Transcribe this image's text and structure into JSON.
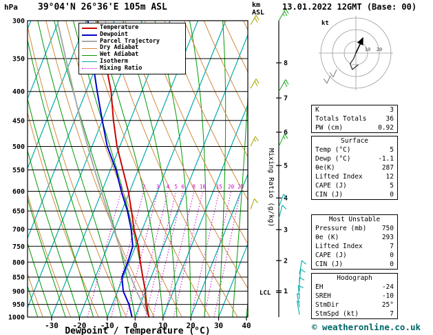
{
  "header": {
    "pressure_unit": "hPa",
    "station": "39°04'N 26°36'E 105m ASL",
    "datetime": "13.01.2022 12GMT (Base: 00)",
    "km_label": "km",
    "asl_label": "ASL"
  },
  "axes": {
    "bottom_label": "Dewpoint / Temperature (°C)",
    "right_label": "Mixing Ratio (g/kg)",
    "lcl_label": "LCL"
  },
  "legend": {
    "items": [
      {
        "label": "Temperature",
        "color": "#CC0000",
        "width": 2,
        "dash": ""
      },
      {
        "label": "Dewpoint",
        "color": "#0000CC",
        "width": 2,
        "dash": ""
      },
      {
        "label": "Parcel Trajectory",
        "color": "#AAAAAA",
        "width": 2,
        "dash": ""
      },
      {
        "label": "Dry Adiabat",
        "color": "#D08A3E",
        "width": 1.3,
        "dash": ""
      },
      {
        "label": "Wet Adiabat",
        "color": "#009900",
        "width": 1.3,
        "dash": ""
      },
      {
        "label": "Isotherm",
        "color": "#00AAAA",
        "width": 1.3,
        "dash": ""
      },
      {
        "label": "Mixing Ratio",
        "color": "#CC00CC",
        "width": 1.3,
        "dash": "dot"
      }
    ]
  },
  "side_panel": {
    "indices": {
      "rows": [
        [
          "K",
          "3"
        ],
        [
          "Totals Totals",
          "36"
        ],
        [
          "PW (cm)",
          "0.92"
        ]
      ]
    },
    "surface": {
      "title": "Surface",
      "rows": [
        [
          "Temp (°C)",
          "5"
        ],
        [
          "Dewp (°C)",
          "-1.1"
        ],
        [
          "θe(K)",
          "287"
        ],
        [
          "Lifted Index",
          "12"
        ],
        [
          "CAPE (J)",
          "5"
        ],
        [
          "CIN (J)",
          "0"
        ]
      ]
    },
    "most_unstable": {
      "title": "Most Unstable",
      "rows": [
        [
          "Pressure (mb)",
          "750"
        ],
        [
          "θe (K)",
          "293"
        ],
        [
          "Lifted Index",
          "7"
        ],
        [
          "CAPE (J)",
          "0"
        ],
        [
          "CIN (J)",
          "0"
        ]
      ]
    },
    "hodograph": {
      "title": "Hodograph",
      "rows": [
        [
          "EH",
          "-24"
        ],
        [
          "SREH",
          "-10"
        ],
        [
          "StmDir",
          "25°"
        ],
        [
          "StmSpd (kt)",
          "7"
        ]
      ]
    }
  },
  "footer": {
    "credit": "© weatheronline.co.uk"
  },
  "chart_data": {
    "type": "skewt_logp_sounding",
    "title": "39°04'N 26°36'E 105m ASL",
    "valid": "13.01.2022 12GMT (Base: 00)",
    "xlabel": "Dewpoint / Temperature (°C)",
    "ylabel": "hPa",
    "pressure_range_hpa": [
      300,
      1000
    ],
    "temp_range_c": [
      -30,
      40
    ],
    "pressure_ticks_hpa": [
      300,
      350,
      400,
      450,
      500,
      550,
      600,
      650,
      700,
      750,
      800,
      850,
      900,
      950,
      1000
    ],
    "temp_ticks_c": [
      -30,
      -20,
      -10,
      0,
      10,
      20,
      30,
      40
    ],
    "km_asl_ticks": [
      1,
      2,
      3,
      4,
      5,
      6,
      7,
      8
    ],
    "km_tick_pressures_hpa": [
      898.7,
      795.0,
      701.1,
      616.4,
      540.2,
      471.8,
      410.6,
      356.0
    ],
    "isotherms_c": [
      -80,
      -70,
      -60,
      -50,
      -40,
      -30,
      -20,
      -10,
      0,
      10,
      20,
      30,
      40
    ],
    "dry_adiabats_theta_k": [
      240,
      250,
      260,
      270,
      280,
      290,
      300,
      310,
      320,
      330,
      340,
      350,
      360,
      370,
      380
    ],
    "wet_adiabats_start_c": [
      -35,
      -30,
      -25,
      -20,
      -15,
      -10,
      -5,
      0,
      5,
      10,
      15,
      20,
      25,
      30,
      35,
      40
    ],
    "mixing_ratio_g_per_kg": [
      1,
      2,
      3,
      4,
      5,
      6,
      8,
      10,
      15,
      20,
      25
    ],
    "lcl_pressure_hpa": 905,
    "sounding": {
      "pressure_hpa": [
        1000,
        950,
        900,
        850,
        800,
        750,
        700,
        650,
        600,
        550,
        500,
        450,
        400,
        350,
        300
      ],
      "temperature_c": [
        5,
        2,
        0,
        -3,
        -6,
        -9,
        -13,
        -16.5,
        -20.5,
        -25.5,
        -31,
        -36,
        -41,
        -48,
        -56
      ],
      "dewpoint_c": [
        -1.1,
        -4,
        -8,
        -10.5,
        -10.5,
        -11,
        -14,
        -18,
        -23,
        -28,
        -34.5,
        -40,
        -46,
        -52.5,
        -59.5
      ]
    },
    "parcel": {
      "pressure_hpa": [
        1000,
        950,
        905,
        850,
        800,
        750,
        700,
        650,
        600,
        550,
        500,
        450,
        400,
        350,
        300
      ],
      "temperature_c": [
        5,
        1,
        -2.8,
        -7.3,
        -11.5,
        -15.8,
        -20.3,
        -25.1,
        -30.2,
        -35.7,
        -41.5,
        -47.8,
        -54.5,
        -62,
        -70.5
      ]
    },
    "winds": [
      {
        "pressure_hpa": 300,
        "dir_deg": 30,
        "speed_kt": 25,
        "band": "upper",
        "column": "axis"
      },
      {
        "pressure_hpa": 400,
        "dir_deg": 30,
        "speed_kt": 20,
        "band": "upper",
        "column": "axis"
      },
      {
        "pressure_hpa": 500,
        "dir_deg": 25,
        "speed_kt": 15,
        "band": "upper",
        "column": "axis"
      },
      {
        "pressure_hpa": 640,
        "dir_deg": 20,
        "speed_kt": 10,
        "band": "lower",
        "column": "axis"
      },
      {
        "pressure_hpa": 670,
        "dir_deg": 15,
        "speed_kt": 10,
        "band": "lower",
        "column": "axis"
      },
      {
        "pressure_hpa": 840,
        "dir_deg": 10,
        "speed_kt": 10,
        "band": "lower",
        "column": "low"
      },
      {
        "pressure_hpa": 870,
        "dir_deg": 5,
        "speed_kt": 10,
        "band": "lower",
        "column": "low"
      },
      {
        "pressure_hpa": 900,
        "dir_deg": 360,
        "speed_kt": 10,
        "band": "lower",
        "column": "low"
      },
      {
        "pressure_hpa": 930,
        "dir_deg": 355,
        "speed_kt": 10,
        "band": "lower",
        "column": "low"
      },
      {
        "pressure_hpa": 960,
        "dir_deg": 350,
        "speed_kt": 7,
        "band": "lower",
        "column": "low"
      },
      {
        "pressure_hpa": 990,
        "dir_deg": 350,
        "speed_kt": 5,
        "band": "lower",
        "column": "low"
      }
    ],
    "edge_winds": [
      {
        "pressure_hpa": 305,
        "dir_deg": 30,
        "speed_kt": 20
      },
      {
        "pressure_hpa": 395,
        "dir_deg": 30,
        "speed_kt": 20
      },
      {
        "pressure_hpa": 500,
        "dir_deg": 25,
        "speed_kt": 15
      },
      {
        "pressure_hpa": 645,
        "dir_deg": 20,
        "speed_kt": 10
      }
    ],
    "hodograph": {
      "unit": "kt",
      "rings_kt": [
        10,
        20,
        30
      ],
      "labeled_rings_kt": [
        10,
        20
      ],
      "storm_dir_deg": 25,
      "storm_speed_kt": 7,
      "trace_uv_kt": [
        [
          0,
          0
        ],
        [
          -2,
          -5
        ],
        [
          -5,
          -9
        ],
        [
          -3,
          -14
        ],
        [
          2,
          -10
        ]
      ]
    },
    "indices": {
      "K": 3,
      "Totals_Totals": 36,
      "PW_cm": 0.92,
      "surface": {
        "temp_c": 5,
        "dewp_c": -1.1,
        "theta_e_k": 287,
        "lifted_index": 12,
        "cape_j": 5,
        "cin_j": 0
      },
      "most_unstable": {
        "pressure_mb": 750,
        "theta_e_k": 293,
        "lifted_index": 7,
        "cape_j": 0,
        "cin_j": 0
      },
      "hodograph": {
        "EH": -24,
        "SREH": -10,
        "stm_dir_deg": 25,
        "stm_spd_kt": 7
      }
    },
    "colors": {
      "temperature": "#CC0000",
      "dewpoint": "#0000CC",
      "parcel": "#AAAAAA",
      "dry_adiabat": "#D08A3E",
      "wet_adiabat": "#009900",
      "isotherm": "#00AAAA",
      "mixing_ratio": "#CC00CC",
      "isobar": "#000000",
      "wind_upper": "#22AA22",
      "wind_lower": "#00AAAA",
      "edge_wind": "#AAAA00"
    }
  }
}
